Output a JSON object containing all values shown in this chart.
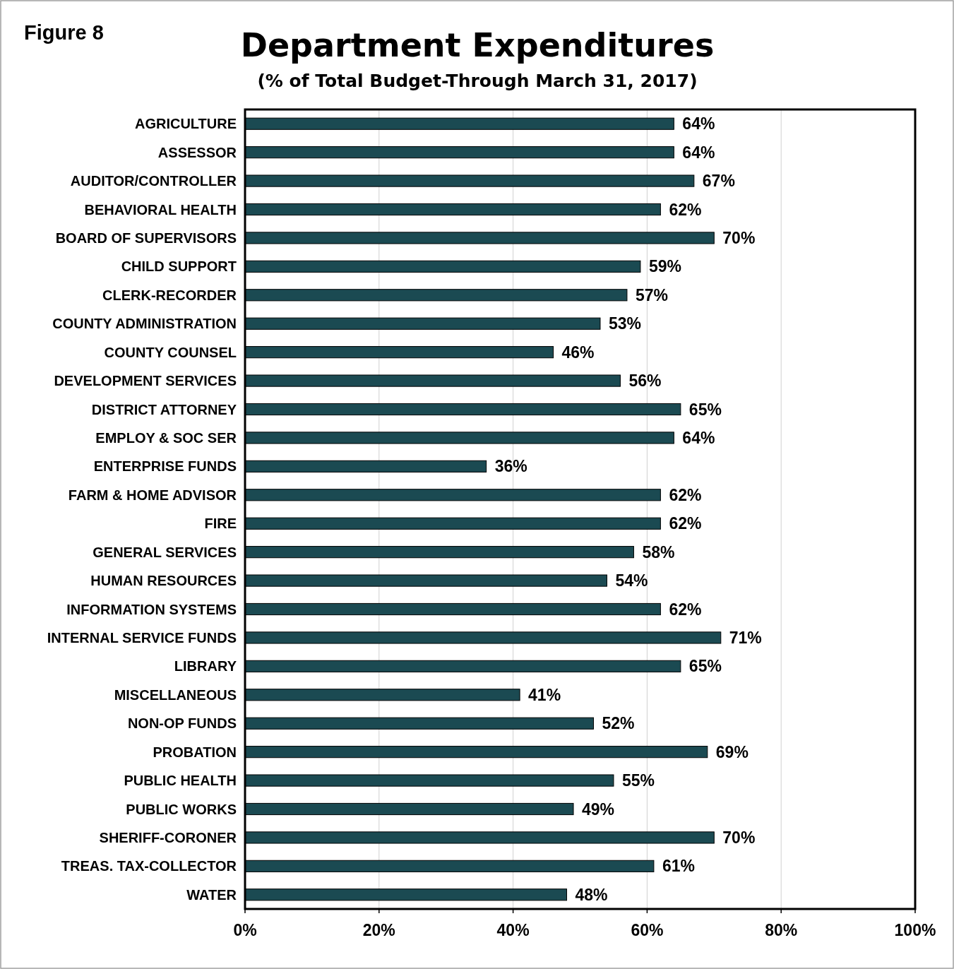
{
  "chart_data": {
    "type": "bar",
    "orientation": "horizontal",
    "title": "Department Expenditures",
    "subtitle": "(% of Total Budget-Through March 31, 2017)",
    "annotations": [
      "Figure 8"
    ],
    "categories": [
      "AGRICULTURE",
      "ASSESSOR",
      "AUDITOR/CONTROLLER",
      "BEHAVIORAL HEALTH",
      "BOARD OF SUPERVISORS",
      "CHILD SUPPORT",
      "CLERK-RECORDER",
      "COUNTY ADMINISTRATION",
      "COUNTY COUNSEL",
      "DEVELOPMENT SERVICES",
      "DISTRICT ATTORNEY",
      "EMPLOY & SOC SER",
      "ENTERPRISE FUNDS",
      "FARM & HOME ADVISOR",
      "FIRE",
      "GENERAL SERVICES",
      "HUMAN RESOURCES",
      "INFORMATION SYSTEMS",
      "INTERNAL SERVICE FUNDS",
      "LIBRARY",
      "MISCELLANEOUS",
      "NON-OP FUNDS",
      "PROBATION",
      "PUBLIC HEALTH",
      "PUBLIC WORKS",
      "SHERIFF-CORONER",
      "TREAS. TAX-COLLECTOR",
      "WATER"
    ],
    "values": [
      64,
      64,
      67,
      62,
      70,
      59,
      57,
      53,
      46,
      56,
      65,
      64,
      36,
      62,
      62,
      58,
      54,
      62,
      71,
      65,
      41,
      52,
      69,
      55,
      49,
      70,
      61,
      48
    ],
    "value_labels": [
      "64%",
      "64%",
      "67%",
      "62%",
      "70%",
      "59%",
      "57%",
      "53%",
      "46%",
      "56%",
      "65%",
      "64%",
      "36%",
      "62%",
      "62%",
      "58%",
      "54%",
      "62%",
      "71%",
      "65%",
      "41%",
      "52%",
      "69%",
      "55%",
      "49%",
      "70%",
      "61%",
      "48%"
    ],
    "color": "#1b4a52",
    "xlim": [
      0,
      100
    ],
    "xticks": [
      {
        "value": 0,
        "label": "0%"
      },
      {
        "value": 20,
        "label": "20%"
      },
      {
        "value": 40,
        "label": "40%"
      },
      {
        "value": 60,
        "label": "60%"
      },
      {
        "value": 80,
        "label": "80%"
      },
      {
        "value": 100,
        "label": "100%"
      }
    ],
    "grid": "x"
  }
}
